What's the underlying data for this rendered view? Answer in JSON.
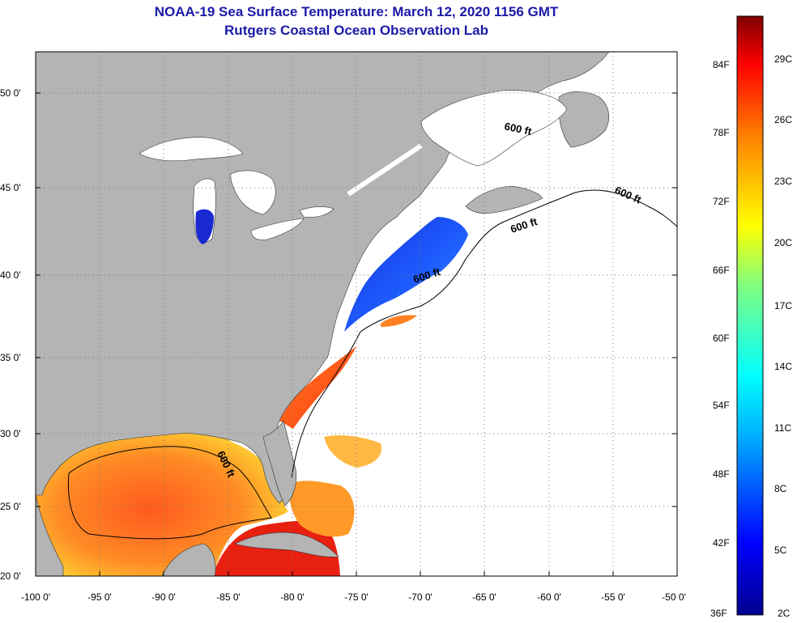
{
  "title": {
    "line1": "NOAA-19 Sea Surface Temperature:  March 12, 2020 1156 GMT",
    "line2": "Rutgers Coastal Ocean Observation Lab"
  },
  "map": {
    "lat_labels": [
      "50 0'",
      "45 0'",
      "40 0'",
      "35 0'",
      "30 0'",
      "25 0'",
      "20 0'"
    ],
    "lon_labels": [
      "-100 0'",
      "-95 0'",
      "-90 0'",
      "-85 0'",
      "-80 0'",
      "-75 0'",
      "-70 0'",
      "-65 0'",
      "-60 0'",
      "-55 0'",
      "-50 0'"
    ],
    "contour_label": "600 ft",
    "colors": {
      "land": "#b4b4b4",
      "ocean_nodata": "#ffffff",
      "lake": "#ffffff"
    }
  },
  "colorbar": {
    "fahrenheit": [
      "84F",
      "78F",
      "72F",
      "66F",
      "60F",
      "54F",
      "48F",
      "42F",
      "36F"
    ],
    "celsius": [
      "29C",
      "26C",
      "23C",
      "20C",
      "17C",
      "14C",
      "11C",
      "8C",
      "5C",
      "2C"
    ]
  }
}
